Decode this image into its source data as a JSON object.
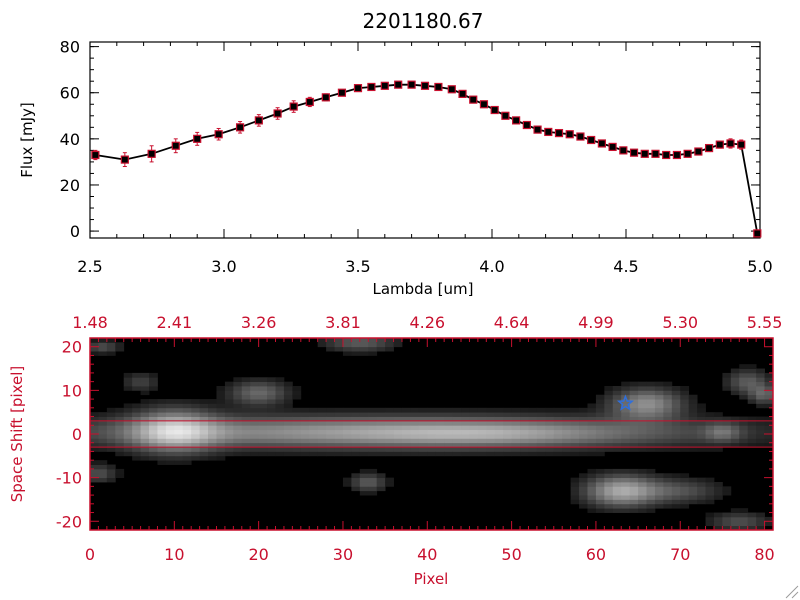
{
  "colors": {
    "accent": "#c8102e",
    "axis": "#000000",
    "star": "#2f6fdc"
  },
  "chart_data": [
    {
      "type": "line",
      "title": "2201180.67",
      "xlabel": "Lambda [um]",
      "ylabel": "Flux [mJy]",
      "xlim": [
        2.5,
        5.0
      ],
      "ylim": [
        -3,
        82
      ],
      "xticks": [
        "2.5",
        "3.0",
        "3.5",
        "4.0",
        "4.5",
        "5.0"
      ],
      "yticks": [
        "0",
        "20",
        "40",
        "60",
        "80"
      ],
      "grid": false,
      "series": [
        {
          "x": [
            2.52,
            2.63,
            2.73,
            2.82,
            2.9,
            2.98,
            3.06,
            3.13,
            3.2,
            3.26,
            3.32,
            3.38,
            3.44,
            3.5,
            3.55,
            3.6,
            3.65,
            3.7,
            3.75,
            3.8,
            3.85,
            3.89,
            3.93,
            3.97,
            4.01,
            4.05,
            4.09,
            4.13,
            4.17,
            4.21,
            4.25,
            4.29,
            4.33,
            4.37,
            4.41,
            4.45,
            4.49,
            4.53,
            4.57,
            4.61,
            4.65,
            4.69,
            4.73,
            4.77,
            4.81,
            4.85,
            4.89,
            4.93,
            4.99
          ],
          "y": [
            33,
            31,
            33.5,
            37,
            40,
            42,
            45,
            48,
            51,
            54,
            56,
            58,
            60,
            62,
            62.5,
            63,
            63.5,
            63.5,
            63,
            62.5,
            61.5,
            59.5,
            57,
            55,
            52.5,
            50,
            48,
            46,
            44,
            43,
            42.5,
            42,
            41,
            39.5,
            38,
            36.5,
            35,
            34,
            33.5,
            33.5,
            33,
            33,
            33.5,
            34.5,
            36,
            37.5,
            38,
            37.5,
            -1
          ],
          "err": [
            2,
            3,
            3.5,
            3,
            2.8,
            2.5,
            2.5,
            2.5,
            2.5,
            2.5,
            2,
            1.5,
            1,
            1,
            1,
            1,
            1,
            1,
            1,
            1,
            1,
            1,
            1,
            1,
            1,
            1,
            1,
            1,
            1,
            1,
            1,
            1,
            1,
            1,
            1,
            1,
            1,
            1,
            1,
            1,
            1,
            1,
            1,
            1.5,
            1.5,
            1.5,
            2,
            2,
            1
          ]
        }
      ]
    },
    {
      "type": "heatmap",
      "xlabel": "Pixel",
      "ylabel": "Space Shift [pixel]",
      "xlim": [
        0,
        81
      ],
      "ylim": [
        -22,
        22
      ],
      "xticks": [
        "0",
        "10",
        "20",
        "30",
        "40",
        "50",
        "60",
        "70",
        "80"
      ],
      "yticks": [
        "-20",
        "-10",
        "0",
        "10",
        "20"
      ],
      "top_axis_labels": [
        "1.48",
        "2.41",
        "3.26",
        "3.81",
        "4.26",
        "4.64",
        "4.99",
        "5.30",
        "5.55"
      ],
      "lines_y": [
        3,
        -3
      ],
      "marker": {
        "symbol": "star",
        "x": 63.5,
        "y": 7
      },
      "sources": [
        {
          "x": 35,
          "y": 0.5,
          "sx": 26,
          "sy": 2.6,
          "amp": 0.55
        },
        {
          "x": 10,
          "y": 0.8,
          "sx": 3.5,
          "sy": 3.5,
          "amp": 0.55
        },
        {
          "x": 47,
          "y": 0,
          "sx": 10,
          "sy": 2.0,
          "amp": 0.18
        },
        {
          "x": 20,
          "y": 9.5,
          "sx": 2.5,
          "sy": 2.0,
          "amp": 0.35
        },
        {
          "x": 66,
          "y": 7,
          "sx": 3.0,
          "sy": 2.5,
          "amp": 0.5
        },
        {
          "x": 63,
          "y": -13,
          "sx": 3.0,
          "sy": 2.5,
          "amp": 0.6
        },
        {
          "x": 70,
          "y": -13,
          "sx": 3.5,
          "sy": 2.0,
          "amp": 0.25
        },
        {
          "x": 32,
          "y": 21,
          "sx": 3.0,
          "sy": 1.5,
          "amp": 0.3
        },
        {
          "x": 33,
          "y": -11,
          "sx": 1.5,
          "sy": 1.5,
          "amp": 0.3
        },
        {
          "x": 78,
          "y": 12,
          "sx": 1.8,
          "sy": 2.0,
          "amp": 0.3
        },
        {
          "x": 80,
          "y": 9,
          "sx": 1.2,
          "sy": 1.5,
          "amp": 0.3
        },
        {
          "x": 1,
          "y": -9,
          "sx": 1.5,
          "sy": 1.5,
          "amp": 0.25
        },
        {
          "x": 1.5,
          "y": 20,
          "sx": 1.5,
          "sy": 1.0,
          "amp": 0.25
        },
        {
          "x": 75,
          "y": 0.5,
          "sx": 1.5,
          "sy": 1.5,
          "amp": 0.25
        },
        {
          "x": 77,
          "y": -20,
          "sx": 2.5,
          "sy": 1.5,
          "amp": 0.25
        },
        {
          "x": 6,
          "y": 12,
          "sx": 1.5,
          "sy": 1.5,
          "amp": 0.2
        }
      ]
    }
  ]
}
